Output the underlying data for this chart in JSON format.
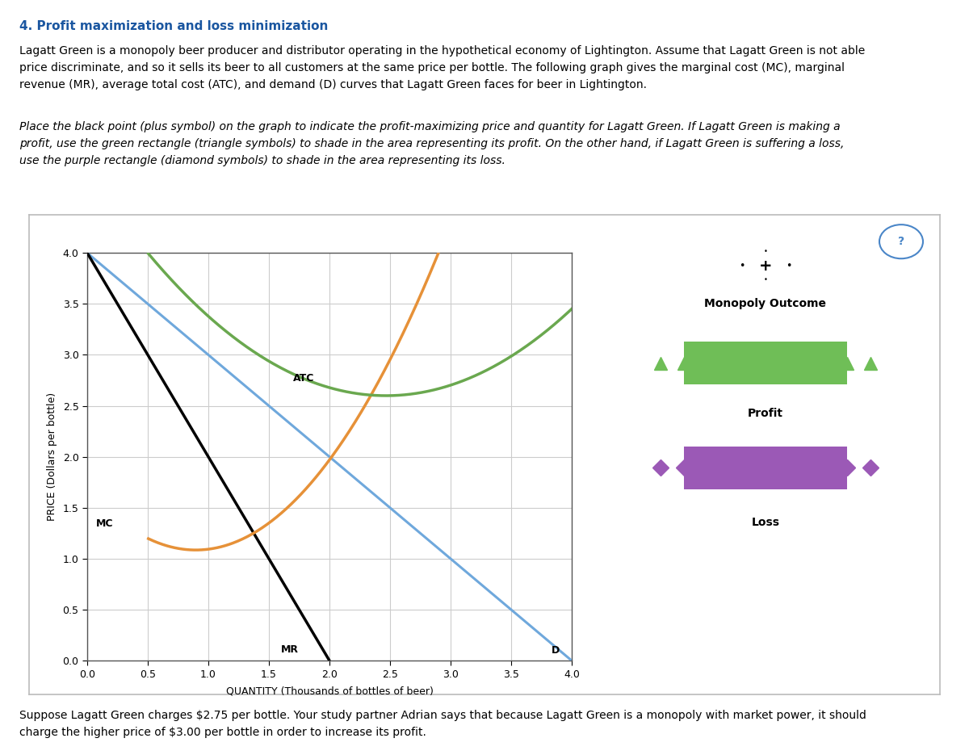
{
  "title": "4. Profit maximization and loss minimization",
  "header_text": "Lagatt Green is a monopoly beer producer and distributor operating in the hypothetical economy of Lightington. Assume that Lagatt Green is not able\nprice discriminate, and so it sells its beer to all customers at the same price per bottle. The following graph gives the marginal cost (MC), marginal\nrevenue (MR), average total cost (ATC), and demand (D) curves that Lagatt Green faces for beer in Lightington.",
  "italic_text": "Place the black point (plus symbol) on the graph to indicate the profit-maximizing price and quantity for Lagatt Green. If Lagatt Green is making a\nprofit, use the green rectangle (triangle symbols) to shade in the area representing its profit. On the other hand, if Lagatt Green is suffering a loss,\nuse the purple rectangle (diamond symbols) to shade in the area representing its loss.",
  "footer_text": "Suppose Lagatt Green charges $2.75 per bottle. Your study partner Adrian says that because Lagatt Green is a monopoly with market power, it should\ncharge the higher price of $3.00 per bottle in order to increase its profit.",
  "xlabel": "QUANTITY (Thousands of bottles of beer)",
  "ylabel": "PRICE (Dollars per bottle)",
  "xlim": [
    0,
    4.0
  ],
  "ylim": [
    0,
    4.0
  ],
  "xticks": [
    0,
    0.5,
    1.0,
    1.5,
    2.0,
    2.5,
    3.0,
    3.5,
    4.0
  ],
  "yticks": [
    0,
    0.5,
    1.0,
    1.5,
    2.0,
    2.5,
    3.0,
    3.5,
    4.0
  ],
  "demand_color": "#6fa8dc",
  "mr_color": "#000000",
  "mc_color": "#e69138",
  "atc_color": "#6aa84f",
  "legend_profit_color": "#6fbe57",
  "legend_loss_color": "#9b59b6",
  "grid_color": "#cccccc",
  "question_circle_color": "#4a86c8",
  "MC_a": 0.7262,
  "MC_b": -1.302,
  "MC_c": 1.669,
  "ATC_a": 0.362,
  "ATC_b": -1.786,
  "ATC_c": 4.8025
}
